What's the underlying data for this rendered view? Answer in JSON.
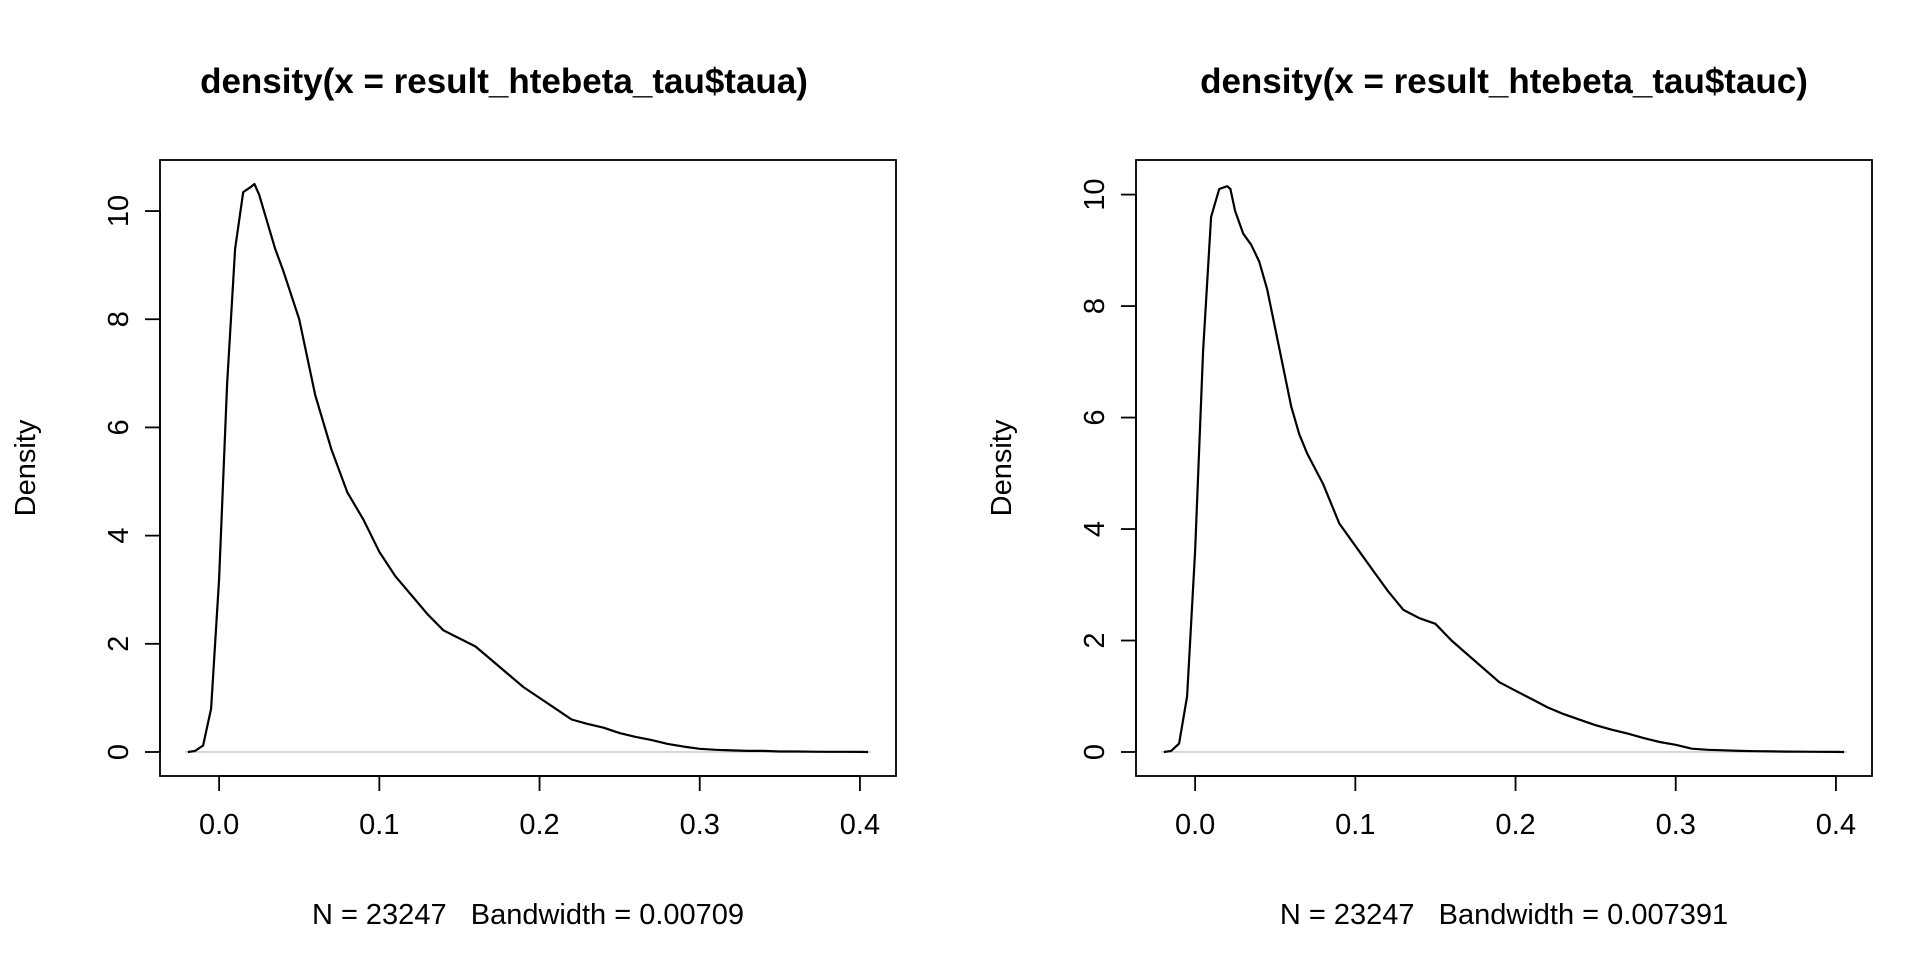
{
  "chart_data": [
    {
      "type": "line",
      "title": "density(x = result_htebeta_tau$taua)",
      "xlabel": "N = 23247   Bandwidth = 0.00709",
      "ylabel": "Density",
      "xlim": [
        -0.0213,
        0.4069
      ],
      "ylim": [
        0,
        10.5
      ],
      "x_ticks": [
        0.0,
        0.1,
        0.2,
        0.3,
        0.4
      ],
      "x_tick_labels": [
        "0.0",
        "0.1",
        "0.2",
        "0.3",
        "0.4"
      ],
      "y_ticks": [
        0,
        2,
        4,
        6,
        8,
        10
      ],
      "y_tick_labels": [
        "0",
        "2",
        "4",
        "6",
        "8",
        "10"
      ],
      "zero_line": true,
      "line_color": "#000000",
      "zero_line_color": "#bfbfbf",
      "series": [
        {
          "x": [
            -0.0195,
            -0.015,
            -0.01,
            -0.005,
            0.0,
            0.005,
            0.01,
            0.015,
            0.02,
            0.022,
            0.025,
            0.03,
            0.035,
            0.04,
            0.05,
            0.055,
            0.06,
            0.07,
            0.08,
            0.09,
            0.1,
            0.11,
            0.12,
            0.13,
            0.14,
            0.15,
            0.16,
            0.17,
            0.18,
            0.19,
            0.2,
            0.21,
            0.22,
            0.23,
            0.24,
            0.25,
            0.26,
            0.27,
            0.28,
            0.29,
            0.3,
            0.31,
            0.32,
            0.33,
            0.34,
            0.35,
            0.36,
            0.37,
            0.38,
            0.39,
            0.4,
            0.405
          ],
          "y": [
            0.0,
            0.02,
            0.12,
            0.8,
            3.2,
            6.8,
            9.3,
            10.35,
            10.45,
            10.5,
            10.3,
            9.8,
            9.3,
            8.9,
            8.0,
            7.3,
            6.6,
            5.6,
            4.8,
            4.3,
            3.7,
            3.25,
            2.9,
            2.55,
            2.25,
            2.1,
            1.95,
            1.7,
            1.45,
            1.2,
            1.0,
            0.8,
            0.6,
            0.52,
            0.45,
            0.35,
            0.28,
            0.22,
            0.15,
            0.1,
            0.06,
            0.04,
            0.03,
            0.02,
            0.02,
            0.01,
            0.01,
            0.005,
            0.004,
            0.003,
            0.002,
            0.0
          ]
        }
      ]
    },
    {
      "type": "line",
      "title": "density(x = result_htebeta_tau$tauc)",
      "xlabel": "N = 23247   Bandwidth = 0.007391",
      "ylabel": "Density",
      "xlim": [
        -0.0213,
        0.4069
      ],
      "ylim": [
        0,
        10.19
      ],
      "x_ticks": [
        0.0,
        0.1,
        0.2,
        0.3,
        0.4
      ],
      "x_tick_labels": [
        "0.0",
        "0.1",
        "0.2",
        "0.3",
        "0.4"
      ],
      "y_ticks": [
        0,
        2,
        4,
        6,
        8,
        10
      ],
      "y_tick_labels": [
        "0",
        "2",
        "4",
        "6",
        "8",
        "10"
      ],
      "zero_line": true,
      "line_color": "#000000",
      "zero_line_color": "#bfbfbf",
      "series": [
        {
          "x": [
            -0.0195,
            -0.015,
            -0.01,
            -0.005,
            0.0,
            0.005,
            0.01,
            0.015,
            0.02,
            0.022,
            0.025,
            0.03,
            0.035,
            0.04,
            0.045,
            0.05,
            0.055,
            0.06,
            0.065,
            0.07,
            0.08,
            0.09,
            0.1,
            0.11,
            0.12,
            0.13,
            0.14,
            0.15,
            0.16,
            0.17,
            0.18,
            0.19,
            0.2,
            0.21,
            0.22,
            0.23,
            0.24,
            0.25,
            0.26,
            0.27,
            0.28,
            0.29,
            0.3,
            0.31,
            0.32,
            0.33,
            0.34,
            0.35,
            0.36,
            0.37,
            0.38,
            0.39,
            0.4,
            0.405
          ],
          "y": [
            0.0,
            0.02,
            0.15,
            1.0,
            3.6,
            7.2,
            9.6,
            10.1,
            10.15,
            10.1,
            9.7,
            9.3,
            9.1,
            8.8,
            8.3,
            7.6,
            6.9,
            6.2,
            5.7,
            5.35,
            4.8,
            4.1,
            3.7,
            3.3,
            2.9,
            2.55,
            2.4,
            2.3,
            2.0,
            1.75,
            1.5,
            1.25,
            1.1,
            0.95,
            0.8,
            0.68,
            0.58,
            0.48,
            0.4,
            0.33,
            0.25,
            0.18,
            0.13,
            0.06,
            0.04,
            0.03,
            0.02,
            0.015,
            0.01,
            0.008,
            0.005,
            0.003,
            0.002,
            0.0
          ]
        }
      ]
    }
  ]
}
